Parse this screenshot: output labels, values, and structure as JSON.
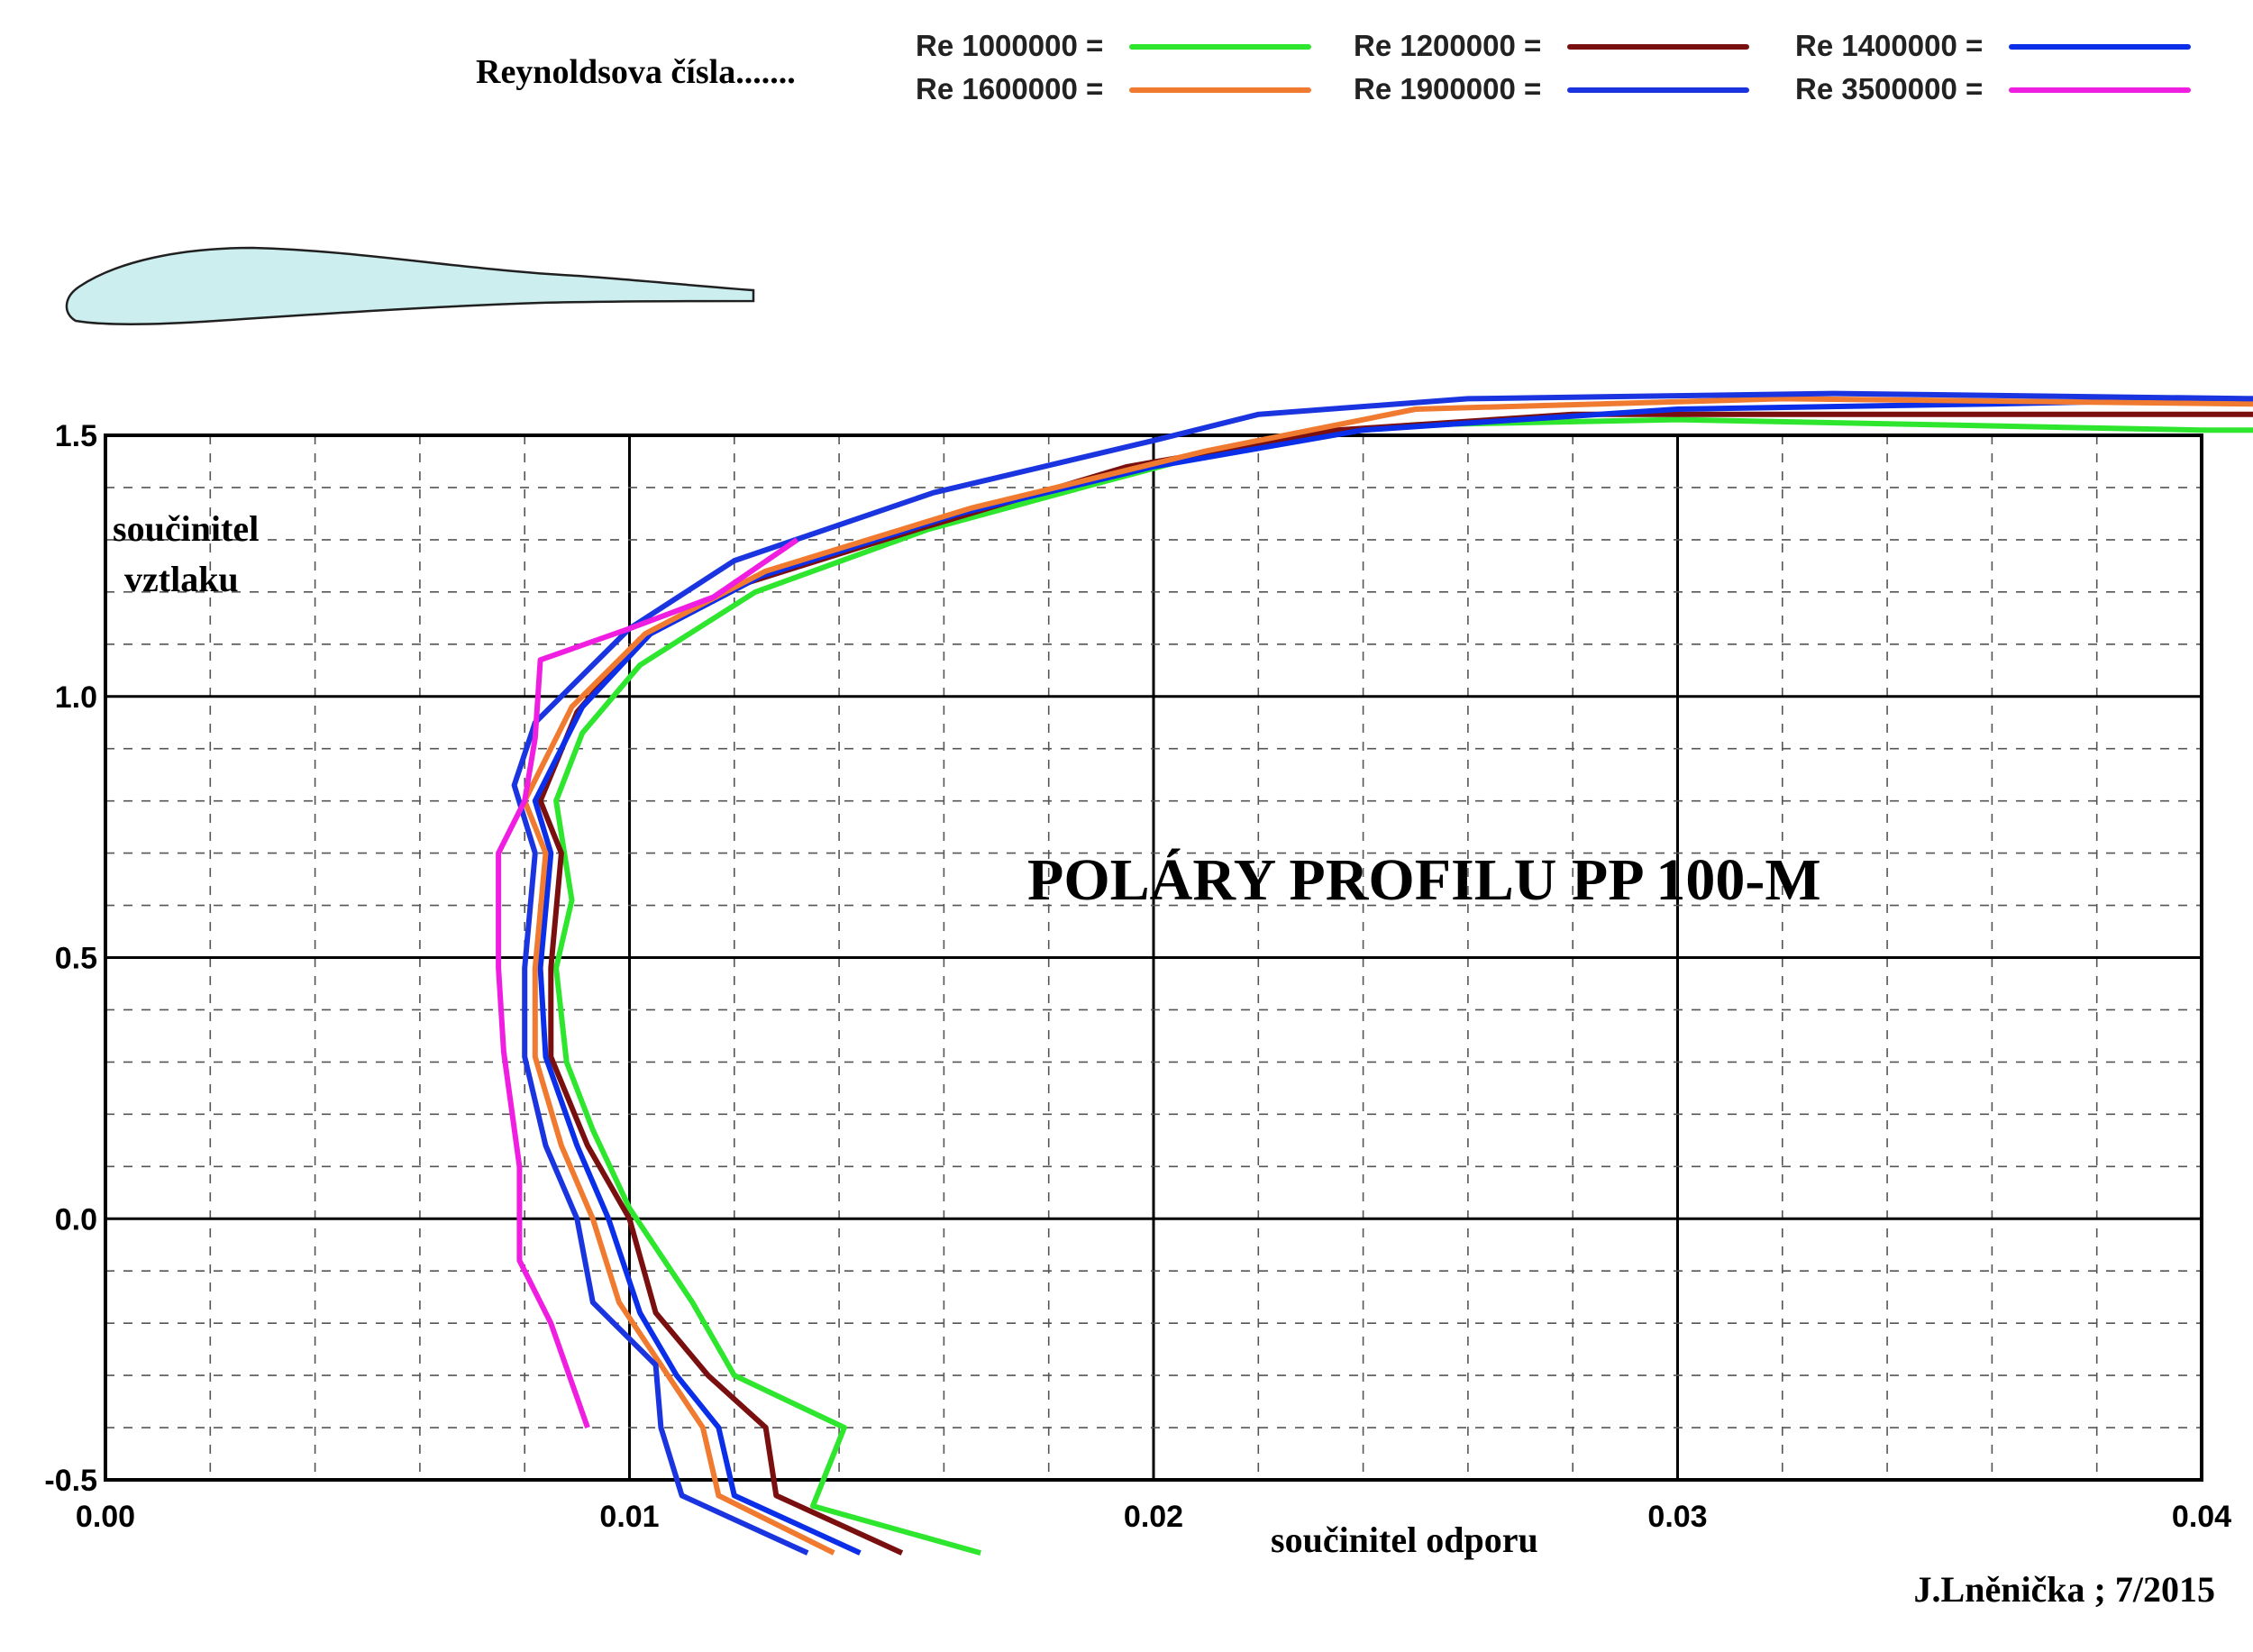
{
  "chart_data": {
    "type": "line",
    "title": "POLÁRY  PROFILU  PP 100-M",
    "xlabel": "součinitel  odporu",
    "ylabel": "součinitel vztlaku",
    "legend_title": "Reynoldsova  čísla.......",
    "author": "J.Lněnička ; 7/2015",
    "xlim": [
      0.0,
      0.04
    ],
    "ylim": [
      -0.5,
      1.5
    ],
    "xticks": [
      "0.00",
      "0.01",
      "0.02",
      "0.03",
      "0.04"
    ],
    "yticks": [
      "-0.5",
      "0.0",
      "0.5",
      "1.0",
      "1.5"
    ],
    "grid": true,
    "legend_position": "top",
    "series": [
      {
        "name": "Re 1000000 =",
        "color": "#2ee62e",
        "points": [
          [
            0.0167,
            -0.64
          ],
          [
            0.0135,
            -0.55
          ],
          [
            0.0141,
            -0.4
          ],
          [
            0.012,
            -0.3
          ],
          [
            0.0112,
            -0.16
          ],
          [
            0.01,
            0.02
          ],
          [
            0.0093,
            0.17
          ],
          [
            0.0088,
            0.3
          ],
          [
            0.0086,
            0.48
          ],
          [
            0.0089,
            0.61
          ],
          [
            0.0086,
            0.8
          ],
          [
            0.0091,
            0.93
          ],
          [
            0.0102,
            1.06
          ],
          [
            0.0124,
            1.2
          ],
          [
            0.0157,
            1.32
          ],
          [
            0.019,
            1.41
          ],
          [
            0.022,
            1.49
          ],
          [
            0.025,
            1.52
          ],
          [
            0.03,
            1.53
          ],
          [
            0.035,
            1.52
          ],
          [
            0.04,
            1.51
          ],
          [
            0.041,
            1.51
          ]
        ]
      },
      {
        "name": "Re 1200000 =",
        "color": "#7a0f0f",
        "points": [
          [
            0.0152,
            -0.64
          ],
          [
            0.0128,
            -0.53
          ],
          [
            0.0126,
            -0.4
          ],
          [
            0.0115,
            -0.3
          ],
          [
            0.0105,
            -0.18
          ],
          [
            0.01,
            0.0
          ],
          [
            0.0092,
            0.14
          ],
          [
            0.0085,
            0.31
          ],
          [
            0.0085,
            0.48
          ],
          [
            0.0087,
            0.7
          ],
          [
            0.0083,
            0.8
          ],
          [
            0.009,
            0.97
          ],
          [
            0.0102,
            1.11
          ],
          [
            0.012,
            1.21
          ],
          [
            0.0155,
            1.32
          ],
          [
            0.0195,
            1.44
          ],
          [
            0.0235,
            1.51
          ],
          [
            0.028,
            1.54
          ],
          [
            0.033,
            1.54
          ],
          [
            0.04,
            1.54
          ],
          [
            0.041,
            1.54
          ]
        ]
      },
      {
        "name": "Re 1400000 =",
        "color": "#0b2ee8",
        "points": [
          [
            0.0144,
            -0.64
          ],
          [
            0.012,
            -0.53
          ],
          [
            0.0117,
            -0.4
          ],
          [
            0.0109,
            -0.3
          ],
          [
            0.0102,
            -0.18
          ],
          [
            0.0096,
            0.0
          ],
          [
            0.009,
            0.14
          ],
          [
            0.0084,
            0.31
          ],
          [
            0.0083,
            0.48
          ],
          [
            0.0085,
            0.7
          ],
          [
            0.0082,
            0.8
          ],
          [
            0.0091,
            0.98
          ],
          [
            0.0104,
            1.12
          ],
          [
            0.0125,
            1.23
          ],
          [
            0.0163,
            1.35
          ],
          [
            0.02,
            1.44
          ],
          [
            0.024,
            1.51
          ],
          [
            0.03,
            1.55
          ],
          [
            0.036,
            1.56
          ],
          [
            0.041,
            1.57
          ]
        ]
      },
      {
        "name": "Re 1600000 =",
        "color": "#f07a30",
        "points": [
          [
            0.0139,
            -0.64
          ],
          [
            0.0117,
            -0.53
          ],
          [
            0.0114,
            -0.4
          ],
          [
            0.0106,
            -0.28
          ],
          [
            0.0098,
            -0.16
          ],
          [
            0.0093,
            0.0
          ],
          [
            0.0087,
            0.14
          ],
          [
            0.0082,
            0.31
          ],
          [
            0.0082,
            0.48
          ],
          [
            0.0084,
            0.7
          ],
          [
            0.008,
            0.8
          ],
          [
            0.0089,
            0.98
          ],
          [
            0.0103,
            1.12
          ],
          [
            0.0126,
            1.24
          ],
          [
            0.0165,
            1.36
          ],
          [
            0.021,
            1.47
          ],
          [
            0.025,
            1.55
          ],
          [
            0.032,
            1.57
          ],
          [
            0.041,
            1.56
          ]
        ]
      },
      {
        "name": "Re 1900000 =",
        "color": "#1a35e0",
        "points": [
          [
            0.0134,
            -0.64
          ],
          [
            0.011,
            -0.53
          ],
          [
            0.0106,
            -0.4
          ],
          [
            0.0105,
            -0.28
          ],
          [
            0.0093,
            -0.16
          ],
          [
            0.009,
            0.0
          ],
          [
            0.0084,
            0.14
          ],
          [
            0.008,
            0.31
          ],
          [
            0.008,
            0.48
          ],
          [
            0.0082,
            0.7
          ],
          [
            0.0078,
            0.83
          ],
          [
            0.0082,
            0.95
          ],
          [
            0.01,
            1.13
          ],
          [
            0.012,
            1.26
          ],
          [
            0.0158,
            1.39
          ],
          [
            0.02,
            1.49
          ],
          [
            0.022,
            1.54
          ],
          [
            0.026,
            1.57
          ],
          [
            0.033,
            1.58
          ],
          [
            0.041,
            1.57
          ]
        ]
      },
      {
        "name": "Re 3500000 =",
        "color": "#f01ee0",
        "points": [
          [
            0.0092,
            -0.4
          ],
          [
            0.0085,
            -0.2
          ],
          [
            0.0079,
            -0.08
          ],
          [
            0.0079,
            0.1
          ],
          [
            0.0076,
            0.32
          ],
          [
            0.0075,
            0.48
          ],
          [
            0.0075,
            0.58
          ],
          [
            0.0075,
            0.7
          ],
          [
            0.008,
            0.8
          ],
          [
            0.0082,
            0.92
          ],
          [
            0.0083,
            1.07
          ],
          [
            0.01,
            1.13
          ],
          [
            0.0116,
            1.19
          ],
          [
            0.0132,
            1.3
          ]
        ]
      }
    ]
  }
}
